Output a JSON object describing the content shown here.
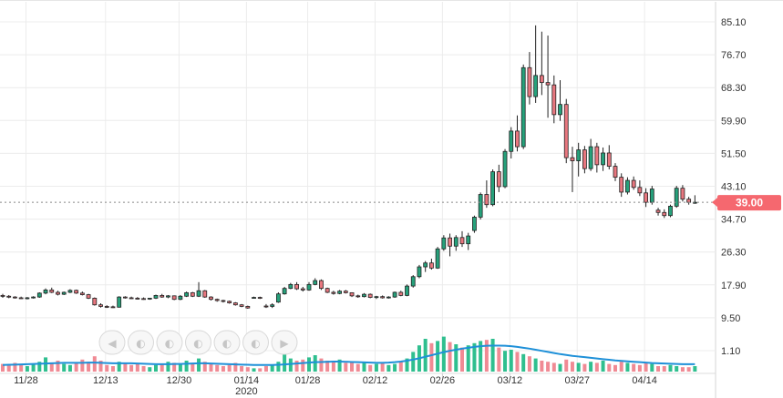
{
  "chart_data": {
    "type": "candlestick",
    "y_ticks": [
      "85.10",
      "76.70",
      "68.30",
      "59.90",
      "51.50",
      "43.10",
      "34.70",
      "26.30",
      "17.90",
      "9.50",
      "1.10"
    ],
    "x_ticks": [
      {
        "label": "11/28",
        "sublabel": ""
      },
      {
        "label": "12/13",
        "sublabel": ""
      },
      {
        "label": "12/30",
        "sublabel": ""
      },
      {
        "label": "01/14",
        "sublabel": "2020"
      },
      {
        "label": "01/28",
        "sublabel": ""
      },
      {
        "label": "02/12",
        "sublabel": ""
      },
      {
        "label": "02/26",
        "sublabel": ""
      },
      {
        "label": "03/12",
        "sublabel": ""
      },
      {
        "label": "03/27",
        "sublabel": ""
      },
      {
        "label": "04/14",
        "sublabel": ""
      }
    ],
    "last_price": "39.00",
    "colors": {
      "up": "#26a17b",
      "down": "#e8777f",
      "volume_up": "#2fbf8f",
      "volume_down": "#f08a94",
      "ma_line": "#1e90d8",
      "price_tag": "#f5686f"
    },
    "ohlc": [
      [
        15.2,
        15.6,
        14.6,
        15.0
      ],
      [
        15.0,
        15.3,
        14.5,
        14.8
      ],
      [
        14.8,
        15.0,
        14.4,
        14.6
      ],
      [
        14.6,
        14.9,
        14.3,
        14.5
      ],
      [
        14.5,
        14.8,
        14.2,
        14.6
      ],
      [
        14.6,
        15.0,
        14.4,
        14.8
      ],
      [
        14.8,
        16.0,
        14.6,
        15.8
      ],
      [
        15.8,
        17.0,
        15.5,
        16.6
      ],
      [
        16.6,
        17.2,
        15.8,
        16.0
      ],
      [
        16.0,
        16.4,
        15.2,
        15.5
      ],
      [
        15.5,
        16.2,
        15.3,
        16.0
      ],
      [
        16.0,
        16.8,
        15.8,
        16.5
      ],
      [
        16.5,
        16.7,
        15.6,
        15.8
      ],
      [
        15.8,
        16.2,
        15.2,
        15.4
      ],
      [
        15.4,
        15.6,
        14.3,
        14.5
      ],
      [
        14.5,
        14.7,
        12.6,
        12.8
      ],
      [
        12.8,
        13.2,
        12.1,
        12.4
      ],
      [
        12.4,
        12.7,
        12.0,
        12.3
      ],
      [
        12.3,
        12.6,
        12.0,
        12.2
      ],
      [
        12.2,
        15.0,
        12.1,
        14.8
      ],
      [
        14.8,
        15.0,
        14.4,
        14.6
      ],
      [
        14.6,
        14.9,
        14.3,
        14.5
      ],
      [
        14.5,
        14.8,
        14.2,
        14.4
      ],
      [
        14.4,
        14.7,
        14.1,
        14.3
      ],
      [
        14.3,
        14.6,
        14.1,
        14.5
      ],
      [
        14.5,
        15.4,
        14.3,
        15.2
      ],
      [
        15.2,
        15.6,
        14.6,
        14.8
      ],
      [
        14.8,
        15.3,
        14.5,
        15.1
      ],
      [
        15.1,
        15.2,
        14.0,
        14.2
      ],
      [
        14.2,
        15.3,
        14.0,
        15.0
      ],
      [
        15.0,
        16.2,
        14.8,
        15.9
      ],
      [
        15.9,
        16.1,
        14.8,
        15.0
      ],
      [
        15.0,
        18.6,
        14.8,
        16.4
      ],
      [
        16.4,
        16.6,
        14.6,
        14.8
      ],
      [
        14.8,
        15.0,
        13.9,
        14.2
      ],
      [
        14.2,
        14.4,
        13.6,
        13.9
      ],
      [
        13.9,
        14.1,
        13.4,
        13.7
      ],
      [
        13.7,
        13.9,
        13.1,
        13.3
      ],
      [
        13.3,
        13.5,
        12.6,
        12.8
      ],
      [
        12.8,
        13.0,
        12.2,
        12.4
      ],
      [
        12.4,
        12.6,
        11.8,
        12.0
      ],
      [
        14.6,
        14.9,
        14.4,
        14.7
      ],
      [
        14.7,
        14.9,
        14.3,
        14.5
      ],
      [
        12.5,
        13.0,
        12.0,
        12.4
      ],
      [
        12.4,
        13.2,
        12.0,
        12.8
      ],
      [
        13.5,
        16.0,
        13.3,
        15.6
      ],
      [
        15.6,
        17.4,
        15.4,
        17.0
      ],
      [
        17.0,
        18.4,
        16.8,
        18.0
      ],
      [
        18.0,
        18.6,
        16.6,
        16.9
      ],
      [
        16.9,
        17.4,
        16.2,
        16.6
      ],
      [
        16.6,
        18.6,
        16.4,
        18.0
      ],
      [
        18.0,
        19.6,
        17.8,
        19.0
      ],
      [
        19.0,
        19.3,
        16.6,
        17.0
      ],
      [
        17.0,
        17.2,
        15.8,
        16.0
      ],
      [
        16.0,
        16.4,
        15.4,
        15.7
      ],
      [
        15.7,
        16.6,
        15.5,
        16.3
      ],
      [
        16.3,
        16.6,
        15.7,
        15.9
      ],
      [
        15.9,
        16.0,
        14.8,
        15.1
      ],
      [
        15.1,
        15.4,
        14.6,
        14.9
      ],
      [
        14.9,
        15.8,
        14.7,
        15.5
      ],
      [
        15.5,
        15.7,
        14.5,
        14.7
      ],
      [
        14.7,
        15.1,
        14.3,
        14.9
      ],
      [
        14.9,
        15.2,
        14.4,
        14.6
      ],
      [
        14.6,
        15.0,
        14.4,
        14.8
      ],
      [
        14.8,
        16.2,
        14.6,
        16.0
      ],
      [
        16.0,
        16.4,
        15.0,
        15.2
      ],
      [
        15.2,
        18.0,
        15.0,
        17.6
      ],
      [
        17.6,
        20.4,
        17.2,
        20.0
      ],
      [
        20.0,
        23.0,
        19.6,
        22.5
      ],
      [
        22.5,
        24.0,
        21.2,
        23.5
      ],
      [
        23.5,
        24.6,
        21.8,
        22.2
      ],
      [
        22.2,
        27.6,
        22.0,
        27.1
      ],
      [
        27.1,
        30.6,
        26.6,
        29.9
      ],
      [
        29.9,
        31.0,
        25.2,
        27.8
      ],
      [
        27.8,
        30.6,
        26.6,
        30.0
      ],
      [
        30.0,
        31.6,
        27.6,
        28.4
      ],
      [
        28.4,
        31.2,
        26.8,
        30.4
      ],
      [
        31.8,
        35.6,
        31.2,
        35.2
      ],
      [
        35.2,
        41.5,
        34.6,
        41.0
      ],
      [
        41.0,
        44.6,
        37.6,
        38.4
      ],
      [
        38.4,
        47.4,
        38.0,
        46.8
      ],
      [
        46.8,
        48.6,
        41.6,
        43.0
      ],
      [
        43.0,
        52.6,
        42.6,
        52.0
      ],
      [
        52.0,
        58.2,
        50.2,
        57.2
      ],
      [
        57.2,
        61.2,
        52.0,
        53.2
      ],
      [
        53.2,
        74.2,
        52.6,
        73.4
      ],
      [
        73.4,
        77.4,
        64.0,
        66.0
      ],
      [
        66.0,
        84.2,
        64.4,
        71.4
      ],
      [
        71.4,
        82.6,
        66.4,
        69.6
      ],
      [
        69.6,
        81.6,
        60.6,
        69.0
      ],
      [
        69.0,
        71.4,
        59.2,
        61.4
      ],
      [
        61.4,
        70.2,
        59.8,
        64.0
      ],
      [
        64.0,
        65.4,
        49.0,
        50.4
      ],
      [
        50.4,
        53.2,
        41.6,
        49.6
      ],
      [
        49.6,
        54.2,
        45.6,
        52.4
      ],
      [
        52.4,
        53.4,
        46.4,
        47.6
      ],
      [
        47.6,
        55.2,
        47.0,
        53.2
      ],
      [
        53.2,
        54.2,
        46.6,
        48.6
      ],
      [
        48.6,
        53.0,
        47.0,
        51.6
      ],
      [
        51.6,
        53.6,
        47.4,
        48.2
      ],
      [
        48.2,
        49.0,
        44.4,
        45.4
      ],
      [
        45.4,
        46.4,
        40.4,
        41.6
      ],
      [
        41.6,
        45.4,
        41.0,
        44.6
      ],
      [
        44.6,
        45.6,
        42.2,
        42.8
      ],
      [
        42.8,
        44.6,
        40.6,
        41.4
      ],
      [
        41.4,
        42.6,
        37.8,
        39.0
      ],
      [
        39.0,
        43.2,
        38.4,
        42.4
      ],
      [
        37.0,
        37.6,
        35.6,
        36.4
      ],
      [
        36.4,
        37.2,
        35.0,
        35.6
      ],
      [
        35.6,
        38.4,
        35.2,
        38.0
      ],
      [
        38.0,
        43.2,
        37.6,
        42.6
      ],
      [
        42.6,
        43.4,
        39.2,
        39.8
      ],
      [
        39.8,
        40.4,
        38.4,
        39.0
      ],
      [
        39.0,
        40.8,
        38.6,
        39.0
      ]
    ],
    "volume": [
      7,
      6,
      8,
      6,
      5,
      7,
      9,
      13,
      8,
      10,
      7,
      6,
      8,
      11,
      9,
      14,
      10,
      6,
      5,
      9,
      8,
      6,
      7,
      5,
      4,
      6,
      7,
      9,
      8,
      7,
      10,
      8,
      12,
      9,
      7,
      6,
      5,
      6,
      8,
      5,
      4,
      3,
      3,
      5,
      6,
      9,
      16,
      12,
      10,
      11,
      13,
      15,
      12,
      10,
      9,
      11,
      8,
      9,
      7,
      8,
      6,
      7,
      8,
      6,
      7,
      9,
      12,
      18,
      24,
      30,
      26,
      28,
      32,
      27,
      25,
      22,
      24,
      26,
      28,
      29,
      30,
      22,
      19,
      20,
      18,
      16,
      14,
      12,
      10,
      9,
      8,
      7,
      11,
      9,
      8,
      7,
      9,
      8,
      10,
      7,
      6,
      9,
      8,
      7,
      6,
      8,
      7,
      5,
      5,
      6,
      5,
      4,
      4,
      5
    ],
    "ma": [
      6,
      6.2,
      6.4,
      6.6,
      6.8,
      7,
      7.2,
      7.4,
      7.6,
      7.8,
      8,
      8,
      8,
      8,
      8.2,
      8.2,
      8,
      7.8,
      7.6,
      7.6,
      7.6,
      7.6,
      7.4,
      7.2,
      7,
      6.8,
      6.8,
      6.8,
      7,
      7,
      7.2,
      7.4,
      7.6,
      7.6,
      7.4,
      7.2,
      7,
      6.8,
      6.6,
      6.4,
      6.2,
      6,
      6,
      6,
      6,
      6.2,
      6.6,
      7,
      7.4,
      7.8,
      8.2,
      8.6,
      8.8,
      9,
      9.2,
      9.2,
      9,
      8.8,
      8.6,
      8.4,
      8.2,
      8,
      8,
      8.2,
      8.6,
      9.2,
      10,
      11,
      12.2,
      13.6,
      15,
      16.4,
      17.8,
      19,
      20,
      21,
      21.8,
      22.6,
      23.2,
      23.6,
      23.8,
      23.8,
      23.6,
      23.2,
      22.6,
      21.8,
      21,
      20,
      19,
      18,
      17,
      16,
      15.2,
      14.4,
      13.8,
      13.2,
      12.6,
      12,
      11.4,
      10.8,
      10.2,
      9.8,
      9.4,
      9,
      8.6,
      8.2,
      7.8,
      7.6,
      7.4,
      7.2,
      7,
      6.8,
      6.8,
      6.8
    ],
    "nav_buttons": [
      "◀",
      "◐",
      "◐",
      "◐",
      "◐",
      "◐",
      "▶"
    ]
  }
}
